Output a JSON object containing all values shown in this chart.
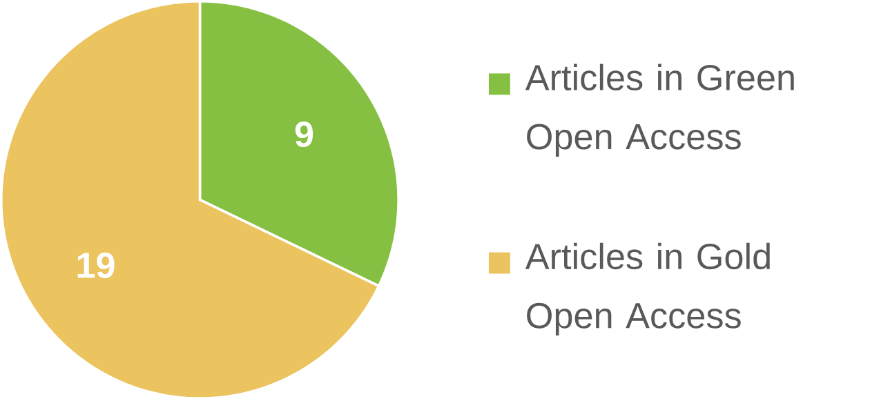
{
  "chart_data": {
    "type": "pie",
    "categories": [
      "Articles in Green Open Access",
      "Articles in Gold Open Access"
    ],
    "values": [
      9,
      19
    ],
    "colors": [
      "#86c043",
      "#ebc45f"
    ],
    "data_labels": true,
    "legend": "right"
  }
}
